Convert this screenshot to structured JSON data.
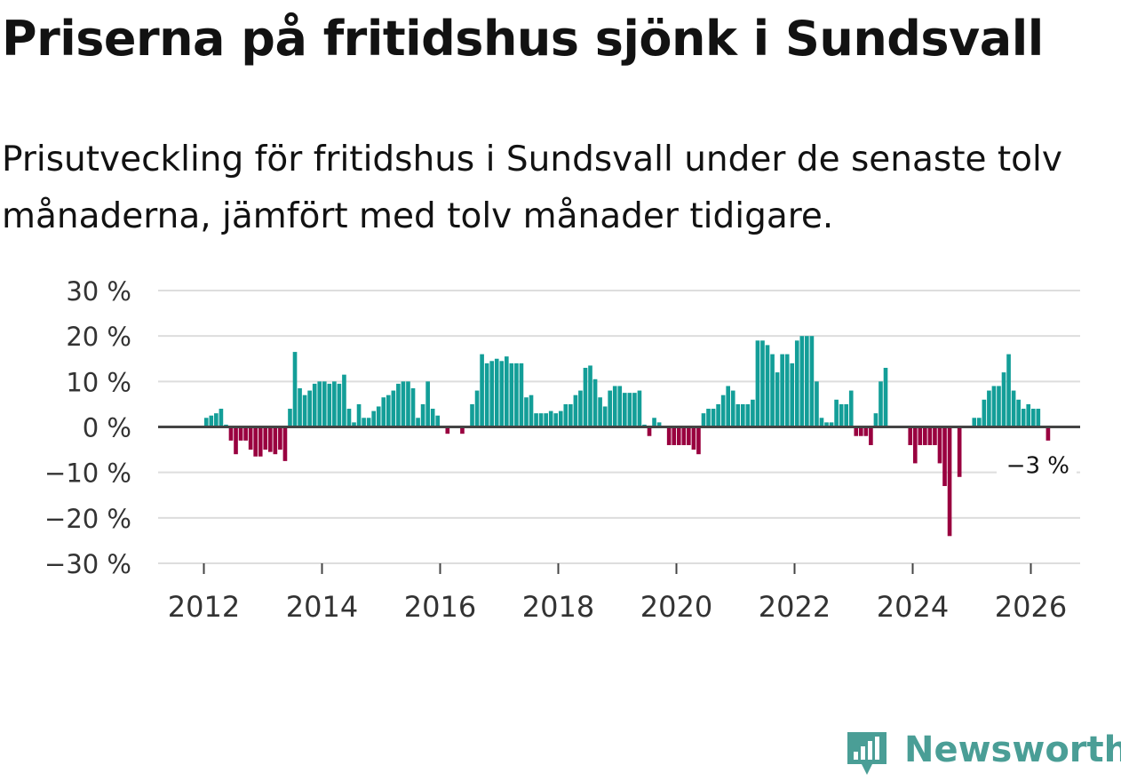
{
  "title": "Priserna på fritidshus sjönk i Sundsvall",
  "subtitle": "Prisutveckling för fritidshus i Sundsvall under de senaste tolv månaderna, jämfört med tolv månader tidigare.",
  "brand": {
    "name": "Newsworthy",
    "logo_icon": "bar-chart-speech-bubble-icon"
  },
  "colors": {
    "positive": "#139e98",
    "negative": "#99003f",
    "grid": "#dddddd",
    "zero": "#444444",
    "text": "#121212",
    "brand": "#4a9e96"
  },
  "chart_data": {
    "type": "bar",
    "title": "Priserna på fritidshus sjönk i Sundsvall",
    "xlabel": "",
    "ylabel": "",
    "ylim": [
      -30,
      30
    ],
    "yticks": [
      30,
      20,
      10,
      0,
      -10,
      -20,
      -30
    ],
    "ytick_labels": [
      "30 %",
      "20 %",
      "10 %",
      "0 %",
      "−10 %",
      "−20 %",
      "−30 %"
    ],
    "xticks": [
      2012,
      2014,
      2016,
      2018,
      2020,
      2022,
      2024,
      2026
    ],
    "xtick_labels": [
      "2012",
      "2014",
      "2016",
      "2018",
      "2020",
      "2022",
      "2024",
      "2026"
    ],
    "x_start": "2012-01",
    "frequency": "monthly",
    "unit": "%",
    "last_value_label": "−3 %",
    "values": [
      2,
      2.5,
      3,
      4,
      0.5,
      -3,
      -6,
      -3,
      -3,
      -5,
      -6.5,
      -6.5,
      -5,
      -5.5,
      -6,
      -5,
      -7.5,
      4,
      16.5,
      8.5,
      7,
      8,
      9.5,
      10,
      10,
      9.5,
      10,
      9.5,
      11.5,
      4,
      1,
      5,
      2,
      2,
      3.5,
      4.5,
      6.5,
      7,
      8,
      9.5,
      10,
      10,
      8.5,
      2,
      5,
      10,
      4,
      2.5,
      0,
      -1.5,
      0,
      0,
      -1.5,
      0,
      5,
      8,
      16,
      14,
      14.5,
      15,
      14.5,
      15.5,
      14,
      14,
      14,
      6.5,
      7,
      3,
      3,
      3,
      3.5,
      3,
      3.5,
      5,
      5,
      7,
      8,
      13,
      13.5,
      10.5,
      6.5,
      4.5,
      8,
      9,
      9,
      7.5,
      7.5,
      7.5,
      8,
      0.5,
      -2,
      2,
      1,
      0,
      -4,
      -4,
      -4,
      -4,
      -4,
      -5,
      -6,
      3,
      4,
      4,
      5,
      7,
      9,
      8,
      5,
      5,
      5,
      6,
      19,
      19,
      18,
      16,
      12,
      16,
      16,
      14,
      19,
      20,
      20,
      20,
      10,
      2,
      1,
      1,
      6,
      5,
      5,
      8,
      -2,
      -2,
      -2,
      -4,
      3,
      10,
      13,
      0,
      0,
      0,
      0,
      -4,
      -8,
      -4,
      -4,
      -4,
      -4,
      -8,
      -13,
      -24,
      0,
      -11,
      0,
      0,
      2,
      2,
      6,
      8,
      9,
      9,
      12,
      16,
      8,
      6,
      4,
      5,
      4,
      4,
      0,
      -3
    ]
  }
}
